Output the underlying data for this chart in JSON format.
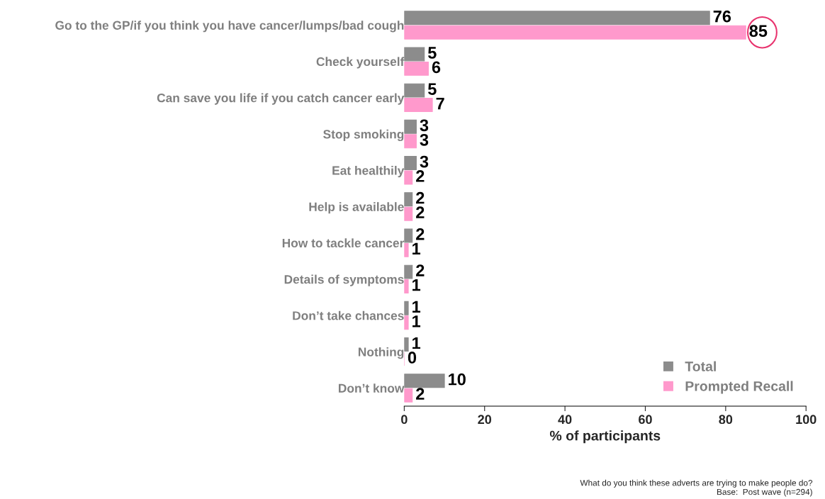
{
  "chart_data": {
    "type": "bar",
    "orientation": "horizontal",
    "categories": [
      "Go to the GP/if you think you have cancer/lumps/bad cough",
      "Check yourself",
      "Can save you life if you catch cancer early",
      "Stop smoking",
      "Eat healthily",
      "Help is available",
      "How to tackle cancer",
      "Details of symptoms",
      "Don’t take chances",
      "Nothing",
      "Don’t know"
    ],
    "series": [
      {
        "name": "Total",
        "color": "#8c8c8c",
        "values": [
          76,
          5,
          5,
          3,
          3,
          2,
          2,
          2,
          1,
          1,
          10
        ]
      },
      {
        "name": "Prompted Recall",
        "color": "#ff99cc",
        "values": [
          85,
          6,
          7,
          3,
          2,
          2,
          1,
          1,
          1,
          0,
          2
        ]
      }
    ],
    "data_labels": true,
    "xlim": [
      0,
      100
    ],
    "xticks": [
      0,
      20,
      40,
      60,
      80,
      100
    ],
    "xlabel": "% of participants",
    "grid": false,
    "legend": "bottom right",
    "annotations": [
      "What do you think these adverts are trying to make people do?\nBase:  Post wave (n=294)"
    ]
  }
}
